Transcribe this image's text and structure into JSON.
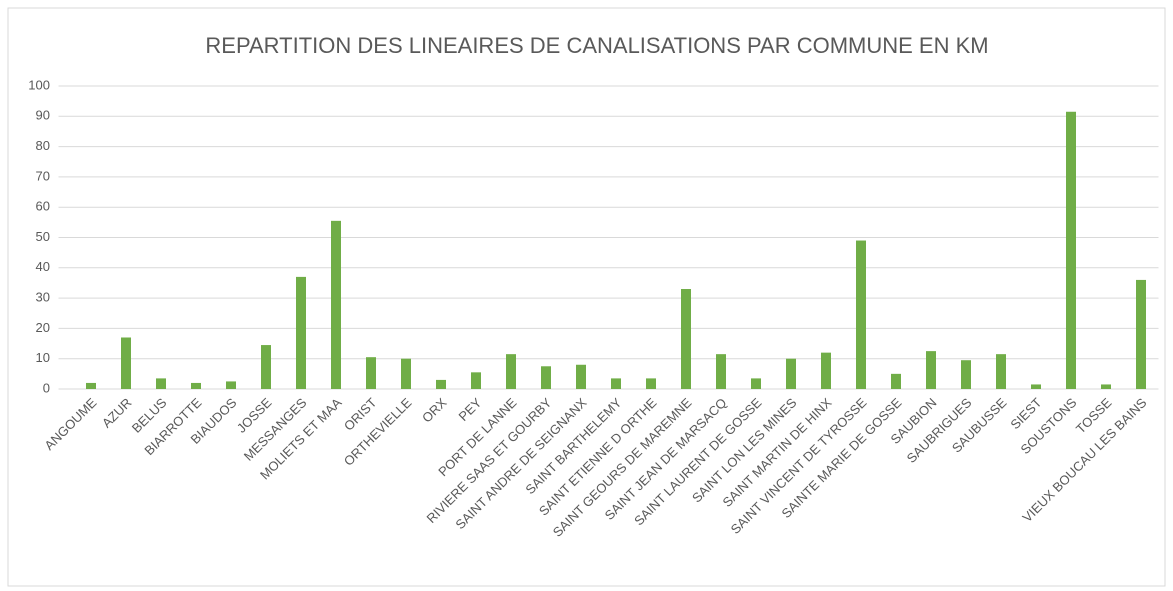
{
  "chart_data": {
    "type": "bar",
    "title": "REPARTITION DES LINEAIRES DE CANALISATIONS PAR COMMUNE EN KM",
    "categories": [
      "ANGOUME",
      "AZUR",
      "BELUS",
      "BIARROTTE",
      "BIAUDOS",
      "JOSSE",
      "MESSANGES",
      "MOLIETS ET MAA",
      "ORIST",
      "ORTHEVIELLE",
      "ORX",
      "PEY",
      "PORT DE LANNE",
      "RIVIERE SAAS ET GOURBY",
      "SAINT ANDRE DE SEIGNANX",
      "SAINT BARTHELEMY",
      "SAINT ETIENNE D ORTHE",
      "SAINT GEOURS DE MAREMNE",
      "SAINT JEAN DE MARSACQ",
      "SAINT LAURENT DE GOSSE",
      "SAINT LON LES MINES",
      "SAINT MARTIN DE HINX",
      "SAINT VINCENT DE TYROSSE",
      "SAINTE MARIE DE GOSSE",
      "SAUBION",
      "SAUBRIGUES",
      "SAUBUSSE",
      "SIEST",
      "SOUSTONS",
      "TOSSE",
      "VIEUX BOUCAU LES BAINS"
    ],
    "values": [
      2,
      17,
      3.5,
      2,
      2.5,
      14.5,
      37,
      55.5,
      10.5,
      10,
      3,
      5.5,
      11.5,
      7.5,
      8,
      3.5,
      3.5,
      33,
      11.5,
      3.5,
      10,
      12,
      49,
      5,
      12.5,
      9.5,
      11.5,
      1.5,
      91.5,
      1.5,
      36
    ],
    "color": "#70ad47",
    "ylim": [
      0,
      100
    ],
    "yticks": [
      0,
      10,
      20,
      30,
      40,
      50,
      60,
      70,
      80,
      90,
      100
    ],
    "grid": true
  }
}
